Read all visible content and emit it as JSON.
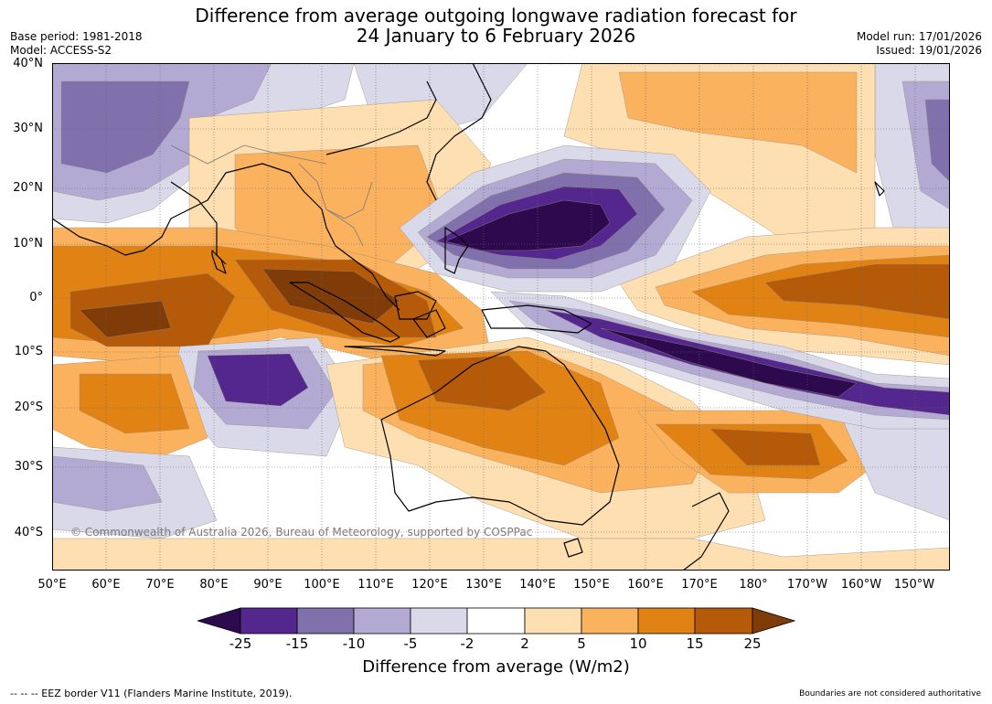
{
  "title": {
    "line1": "Difference from average outgoing longwave radiation forecast for",
    "line2": "24 January to 6 February 2026"
  },
  "meta": {
    "base_period": "Base period: 1981-2018",
    "model": "Model: ACCESS-S2",
    "model_run": "Model run: 17/01/2026",
    "issued": "Issued: 19/01/2026"
  },
  "map": {
    "copyright": "© Commonwealth of Australia 2026, Bureau of Meteorology, supported by COSPPac",
    "lat_labels": [
      "40°N",
      "30°N",
      "20°N",
      "10°N",
      "0°",
      "10°S",
      "20°S",
      "30°S",
      "40°S"
    ],
    "lon_labels": [
      "50°E",
      "60°E",
      "70°E",
      "80°E",
      "90°E",
      "100°E",
      "110°E",
      "120°E",
      "130°E",
      "140°E",
      "150°E",
      "160°E",
      "170°E",
      "180°",
      "170°W",
      "160°W",
      "150°W"
    ]
  },
  "legend": {
    "title": "Difference from average (W/m2)",
    "ticks": [
      "-25",
      "-15",
      "-10",
      "-5",
      "-2",
      "2",
      "5",
      "10",
      "15",
      "25"
    ],
    "colors": [
      "#2d0a4e",
      "#54278f",
      "#8070ac",
      "#b3aad3",
      "#d9d9ea",
      "#ffffff",
      "#fedfb2",
      "#fbb25f",
      "#e08214",
      "#b45a09",
      "#7f3b08"
    ]
  },
  "footer": {
    "eez": "--  --  -- EEZ border V11 (Flanders Marine Institute, 2019).",
    "boundaries": "Boundaries are not considered authoritative"
  }
}
